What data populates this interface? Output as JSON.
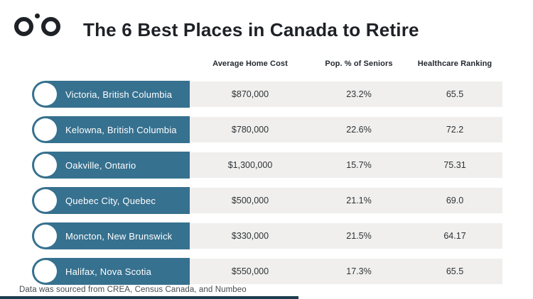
{
  "header": {
    "title": "The 6 Best Places in Canada to Retire"
  },
  "logo": {
    "name": "two-circles-and-dot-logo"
  },
  "table": {
    "columns": [
      "Average Home Cost",
      "Pop. % of Seniors",
      "Healthcare Ranking"
    ],
    "rows": [
      {
        "city": "Victoria, British Columbia",
        "home_cost": "$870,000",
        "seniors_pct": "23.2%",
        "healthcare": "65.5"
      },
      {
        "city": "Kelowna, British Columbia",
        "home_cost": "$780,000",
        "seniors_pct": "22.6%",
        "healthcare": "72.2"
      },
      {
        "city": "Oakville, Ontario",
        "home_cost": "$1,300,000",
        "seniors_pct": "15.7%",
        "healthcare": "75.31"
      },
      {
        "city": "Quebec City, Quebec",
        "home_cost": "$500,000",
        "seniors_pct": "21.1%",
        "healthcare": "69.0"
      },
      {
        "city": "Moncton, New Brunswick",
        "home_cost": "$330,000",
        "seniors_pct": "21.5%",
        "healthcare": "64.17"
      },
      {
        "city": "Halifax, Nova Scotia",
        "home_cost": "$550,000",
        "seniors_pct": "17.3%",
        "healthcare": "65.5"
      }
    ]
  },
  "footer": {
    "source_note": "Data was sourced from CREA, Census Canada, and Numbeo"
  },
  "colors": {
    "accent_blue": "#36718F",
    "row_gray": "#F0EFED",
    "ink": "#1E2126",
    "bottom_bar": "#1D3D4D"
  },
  "chart_data": {
    "type": "table",
    "title": "The 6 Best Places in Canada to Retire",
    "categories": [
      "Victoria, British Columbia",
      "Kelowna, British Columbia",
      "Oakville, Ontario",
      "Quebec City, Quebec",
      "Moncton, New Brunswick",
      "Halifax, Nova Scotia"
    ],
    "series": [
      {
        "name": "Average Home Cost ($)",
        "values": [
          870000,
          780000,
          1300000,
          500000,
          330000,
          550000
        ]
      },
      {
        "name": "Pop. % of Seniors",
        "values": [
          23.2,
          22.6,
          15.7,
          21.1,
          21.5,
          17.3
        ]
      },
      {
        "name": "Healthcare Ranking",
        "values": [
          65.5,
          72.2,
          75.31,
          69.0,
          64.17,
          65.5
        ]
      }
    ],
    "source": "Data was sourced from CREA, Census Canada, and Numbeo",
    "layout": "horizontal pill rows, header labels above value columns"
  }
}
